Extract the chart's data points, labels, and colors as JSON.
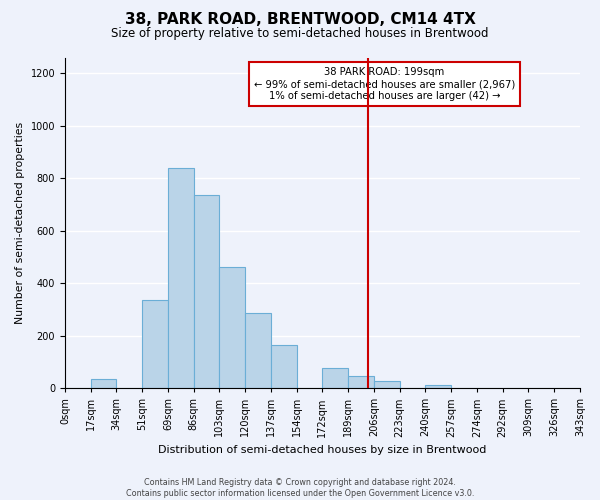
{
  "title": "38, PARK ROAD, BRENTWOOD, CM14 4TX",
  "subtitle": "Size of property relative to semi-detached houses in Brentwood",
  "xlabel": "Distribution of semi-detached houses by size in Brentwood",
  "ylabel": "Number of semi-detached properties",
  "bin_labels": [
    "0sqm",
    "17sqm",
    "34sqm",
    "51sqm",
    "69sqm",
    "86sqm",
    "103sqm",
    "120sqm",
    "137sqm",
    "154sqm",
    "172sqm",
    "189sqm",
    "206sqm",
    "223sqm",
    "240sqm",
    "257sqm",
    "274sqm",
    "292sqm",
    "309sqm",
    "326sqm",
    "343sqm"
  ],
  "bar_heights": [
    0,
    35,
    0,
    335,
    840,
    735,
    462,
    285,
    165,
    0,
    75,
    48,
    28,
    0,
    12,
    0,
    0,
    0,
    0,
    0
  ],
  "bar_color": "#bad4e8",
  "bar_edge_color": "#6baed6",
  "vline_x": 11.76,
  "vline_color": "#cc0000",
  "annotation_box_text": "38 PARK ROAD: 199sqm\n← 99% of semi-detached houses are smaller (2,967)\n1% of semi-detached houses are larger (42) →",
  "ylim": [
    0,
    1260
  ],
  "yticks": [
    0,
    200,
    400,
    600,
    800,
    1000,
    1200
  ],
  "footer_line1": "Contains HM Land Registry data © Crown copyright and database right 2024.",
  "footer_line2": "Contains public sector information licensed under the Open Government Licence v3.0.",
  "background_color": "#eef2fb",
  "title_fontsize": 11,
  "subtitle_fontsize": 8.5
}
